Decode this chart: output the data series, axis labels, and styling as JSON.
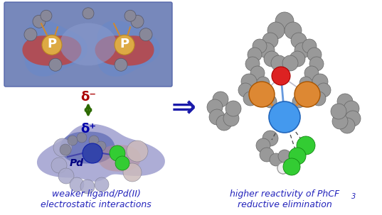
{
  "background_color": "#ffffff",
  "figsize": [
    5.37,
    3.03
  ],
  "dpi": 100,
  "left_caption_line1": "weaker ligand/Pd(II)",
  "left_caption_line2": "electrostatic interactions",
  "right_caption_line1": "higher reactivity of PhCF",
  "right_caption_line1_sub": "3",
  "right_caption_line2": "reductive elimination",
  "caption_color": "#2222bb",
  "caption_fontsize": 9.0,
  "caption_style": "italic",
  "delta_minus_color": "#aa0000",
  "delta_plus_color": "#0000aa",
  "arrow_color": "#2d6a00",
  "P_label_color": "#ffffff",
  "Pd_label_color": "#000080",
  "hollow_arrow_color": "#1a1aaa",
  "top_panel_bg": "#7788bb",
  "top_panel_left_blob": "#cc4444",
  "top_panel_right_blob": "#cc4444",
  "top_panel_center_bg": "#8899cc",
  "bottom_blob_main": "#8888cc",
  "bottom_blob_blue": "#5555aa",
  "bottom_blob_pink": "#cc9999",
  "gray_atom": "#999999",
  "gray_atom_edge": "#666666",
  "orange_P": "#dd8833",
  "orange_P_edge": "#aa5500",
  "blue_Pd": "#4499ee",
  "blue_Pd_edge": "#2266bb",
  "red_atom": "#dd2222",
  "red_atom_edge": "#aa0000",
  "green_Cl": "#33cc33",
  "green_Cl_edge": "#118811"
}
